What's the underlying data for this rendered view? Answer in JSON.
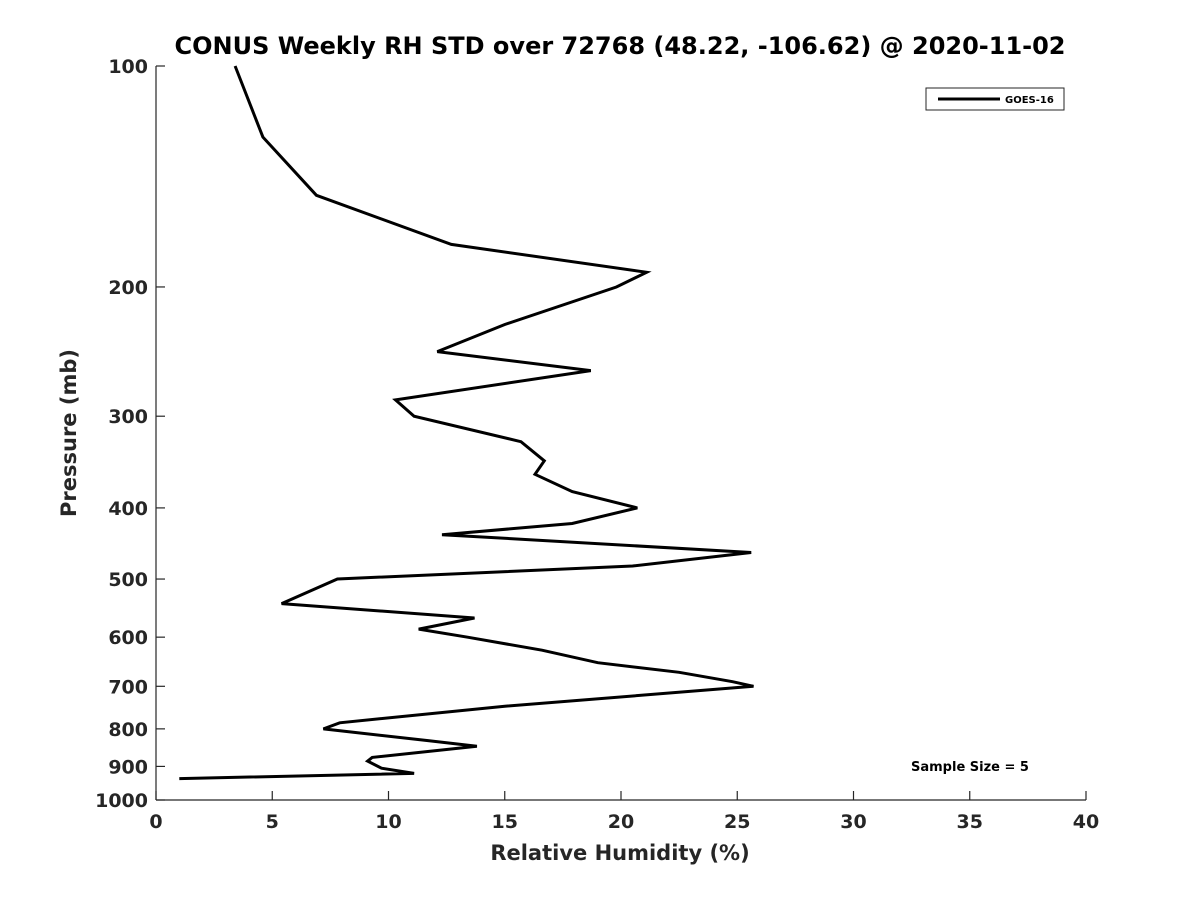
{
  "chart_data": {
    "type": "line",
    "title": "CONUS Weekly RH STD over 72768 (48.22, -106.62) @ 2020-11-02",
    "xlabel": "Relative Humidity (%)",
    "ylabel": "Pressure (mb)",
    "xlim": [
      0,
      40
    ],
    "ylim": [
      100,
      1000
    ],
    "y_scale": "log",
    "y_reversed": true,
    "xticks": [
      "0",
      "5",
      "10",
      "15",
      "20",
      "25",
      "30",
      "35",
      "40"
    ],
    "yticks": [
      "100",
      "200",
      "300",
      "400",
      "500",
      "600",
      "700",
      "800",
      "900",
      "1000"
    ],
    "grid": false,
    "legend_position": "top-right",
    "line_color": "#000000",
    "series": [
      {
        "name": "GOES-16",
        "points": [
          {
            "x": 3.4,
            "p": 100
          },
          {
            "x": 4.6,
            "p": 125
          },
          {
            "x": 6.9,
            "p": 150
          },
          {
            "x": 12.7,
            "p": 175
          },
          {
            "x": 21.1,
            "p": 191
          },
          {
            "x": 19.8,
            "p": 200
          },
          {
            "x": 15.0,
            "p": 225
          },
          {
            "x": 12.1,
            "p": 245
          },
          {
            "x": 18.7,
            "p": 260
          },
          {
            "x": 10.3,
            "p": 285
          },
          {
            "x": 11.1,
            "p": 300
          },
          {
            "x": 15.7,
            "p": 325
          },
          {
            "x": 16.7,
            "p": 345
          },
          {
            "x": 16.3,
            "p": 360
          },
          {
            "x": 17.9,
            "p": 380
          },
          {
            "x": 20.7,
            "p": 400
          },
          {
            "x": 17.9,
            "p": 420
          },
          {
            "x": 12.3,
            "p": 435
          },
          {
            "x": 25.6,
            "p": 460
          },
          {
            "x": 20.5,
            "p": 480
          },
          {
            "x": 7.8,
            "p": 500
          },
          {
            "x": 5.4,
            "p": 540
          },
          {
            "x": 13.7,
            "p": 565
          },
          {
            "x": 11.3,
            "p": 585
          },
          {
            "x": 13.4,
            "p": 600
          },
          {
            "x": 16.6,
            "p": 625
          },
          {
            "x": 19.0,
            "p": 650
          },
          {
            "x": 22.5,
            "p": 670
          },
          {
            "x": 24.8,
            "p": 690
          },
          {
            "x": 25.7,
            "p": 700
          },
          {
            "x": 15.0,
            "p": 745
          },
          {
            "x": 7.9,
            "p": 785
          },
          {
            "x": 7.2,
            "p": 800
          },
          {
            "x": 11.7,
            "p": 830
          },
          {
            "x": 13.8,
            "p": 845
          },
          {
            "x": 9.3,
            "p": 875
          },
          {
            "x": 9.1,
            "p": 885
          },
          {
            "x": 9.7,
            "p": 905
          },
          {
            "x": 11.1,
            "p": 920
          },
          {
            "x": 1.0,
            "p": 935
          }
        ]
      }
    ],
    "annotation": "Sample Size = 5"
  }
}
